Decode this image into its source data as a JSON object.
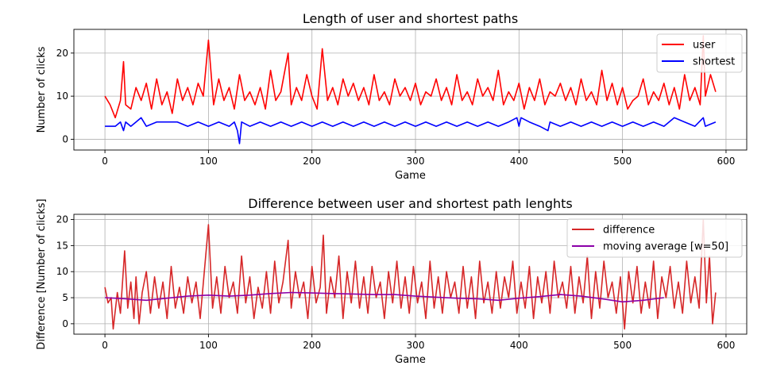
{
  "chart_data": [
    {
      "type": "line",
      "title": "Length of user and shortest paths",
      "xlabel": "Game",
      "ylabel": "Number of clicks",
      "xlim": [
        -30,
        620
      ],
      "ylim": [
        -2.5,
        25.5
      ],
      "xticks": [
        0,
        100,
        200,
        300,
        400,
        500,
        600
      ],
      "yticks": [
        0,
        10,
        20
      ],
      "grid": true,
      "legend_position": "top-right",
      "series": [
        {
          "name": "user",
          "color": "#ff0000",
          "x": [
            0,
            5,
            10,
            15,
            18,
            20,
            25,
            30,
            35,
            40,
            45,
            50,
            55,
            60,
            65,
            70,
            75,
            80,
            85,
            90,
            95,
            100,
            105,
            110,
            115,
            120,
            125,
            130,
            135,
            140,
            145,
            150,
            155,
            160,
            165,
            170,
            177,
            180,
            185,
            190,
            195,
            200,
            205,
            210,
            215,
            220,
            225,
            230,
            235,
            240,
            245,
            250,
            255,
            260,
            265,
            270,
            275,
            280,
            285,
            290,
            295,
            300,
            305,
            310,
            315,
            320,
            325,
            330,
            335,
            340,
            345,
            350,
            355,
            360,
            365,
            370,
            375,
            380,
            385,
            390,
            395,
            400,
            405,
            410,
            415,
            420,
            425,
            430,
            435,
            440,
            445,
            450,
            455,
            460,
            465,
            470,
            475,
            480,
            485,
            490,
            495,
            500,
            505,
            510,
            515,
            520,
            525,
            530,
            535,
            540,
            545,
            550,
            555,
            560,
            565,
            570,
            575,
            578,
            580,
            585,
            590
          ],
          "y": [
            10,
            8,
            5,
            9,
            18,
            8,
            7,
            12,
            9,
            13,
            7,
            14,
            8,
            11,
            6,
            14,
            9,
            12,
            8,
            13,
            10,
            23,
            8,
            14,
            9,
            12,
            7,
            15,
            9,
            11,
            8,
            12,
            7,
            16,
            9,
            11,
            20,
            8,
            12,
            9,
            15,
            10,
            7,
            21,
            9,
            12,
            8,
            14,
            10,
            13,
            9,
            12,
            8,
            15,
            9,
            11,
            8,
            14,
            10,
            12,
            9,
            13,
            8,
            11,
            10,
            14,
            9,
            12,
            8,
            15,
            9,
            11,
            8,
            14,
            10,
            12,
            9,
            16,
            8,
            11,
            9,
            13,
            7,
            12,
            9,
            14,
            8,
            11,
            10,
            13,
            9,
            12,
            8,
            14,
            9,
            11,
            8,
            16,
            9,
            13,
            8,
            12,
            7,
            9,
            10,
            14,
            8,
            11,
            9,
            13,
            8,
            12,
            7,
            15,
            9,
            12,
            8,
            24,
            10,
            15,
            11
          ]
        },
        {
          "name": "shortest",
          "color": "#0000ff",
          "x": [
            0,
            10,
            15,
            18,
            20,
            25,
            30,
            35,
            40,
            50,
            60,
            70,
            80,
            90,
            100,
            110,
            120,
            125,
            128,
            130,
            132,
            140,
            150,
            160,
            170,
            180,
            190,
            200,
            210,
            220,
            230,
            240,
            250,
            260,
            270,
            280,
            290,
            300,
            310,
            320,
            330,
            340,
            350,
            360,
            370,
            380,
            390,
            398,
            400,
            402,
            410,
            420,
            428,
            430,
            440,
            450,
            460,
            470,
            480,
            490,
            500,
            510,
            520,
            530,
            540,
            550,
            560,
            570,
            578,
            580,
            590
          ],
          "y": [
            3,
            3,
            4,
            2,
            4,
            3,
            4,
            5,
            3,
            4,
            4,
            4,
            3,
            4,
            3,
            4,
            3,
            4,
            2,
            -1,
            4,
            3,
            4,
            3,
            4,
            3,
            4,
            3,
            4,
            3,
            4,
            3,
            4,
            3,
            4,
            3,
            4,
            3,
            4,
            3,
            4,
            3,
            4,
            3,
            4,
            3,
            4,
            5,
            3,
            5,
            4,
            3,
            2,
            4,
            3,
            4,
            3,
            4,
            3,
            4,
            3,
            4,
            3,
            4,
            3,
            5,
            4,
            3,
            5,
            3,
            4
          ]
        }
      ]
    },
    {
      "type": "line",
      "title": "Difference between user and shortest path lenghts",
      "xlabel": "Game",
      "ylabel": "Difference [Number of clicks]",
      "xlim": [
        -30,
        620
      ],
      "ylim": [
        -2,
        21
      ],
      "xticks": [
        0,
        100,
        200,
        300,
        400,
        500,
        600
      ],
      "yticks": [
        0,
        5,
        10,
        15,
        20
      ],
      "grid": true,
      "legend_position": "top-right",
      "series": [
        {
          "name": "difference",
          "color": "#d62728",
          "x": [
            0,
            3,
            6,
            8,
            12,
            15,
            19,
            22,
            25,
            28,
            30,
            33,
            36,
            40,
            44,
            48,
            52,
            56,
            60,
            64,
            68,
            72,
            76,
            80,
            84,
            88,
            92,
            96,
            100,
            104,
            108,
            112,
            116,
            120,
            124,
            128,
            132,
            136,
            140,
            144,
            148,
            152,
            156,
            160,
            164,
            168,
            172,
            177,
            180,
            184,
            188,
            192,
            196,
            200,
            204,
            208,
            211,
            214,
            218,
            222,
            226,
            230,
            234,
            238,
            242,
            246,
            250,
            254,
            258,
            262,
            266,
            270,
            274,
            278,
            282,
            286,
            290,
            294,
            298,
            302,
            306,
            310,
            314,
            318,
            322,
            326,
            330,
            334,
            338,
            342,
            346,
            350,
            354,
            358,
            362,
            366,
            370,
            374,
            378,
            382,
            386,
            390,
            394,
            398,
            402,
            406,
            410,
            414,
            418,
            422,
            426,
            430,
            434,
            438,
            442,
            446,
            450,
            454,
            458,
            462,
            466,
            470,
            474,
            478,
            482,
            486,
            490,
            494,
            498,
            502,
            506,
            510,
            514,
            518,
            522,
            526,
            530,
            534,
            538,
            542,
            546,
            550,
            554,
            558,
            562,
            566,
            570,
            574,
            578,
            581,
            584,
            587,
            590
          ],
          "y": [
            7,
            4,
            5,
            -1,
            6,
            2,
            14,
            3,
            8,
            1,
            9,
            0,
            6,
            10,
            2,
            9,
            3,
            8,
            1,
            11,
            3,
            7,
            2,
            9,
            4,
            8,
            1,
            10,
            19,
            3,
            9,
            2,
            11,
            5,
            8,
            2,
            13,
            4,
            9,
            1,
            7,
            3,
            10,
            2,
            12,
            4,
            8,
            16,
            3,
            10,
            5,
            8,
            1,
            11,
            4,
            7,
            17,
            2,
            9,
            5,
            13,
            1,
            10,
            4,
            12,
            3,
            9,
            2,
            11,
            5,
            8,
            1,
            10,
            4,
            12,
            3,
            9,
            2,
            11,
            4,
            8,
            1,
            12,
            3,
            9,
            2,
            10,
            5,
            8,
            2,
            11,
            3,
            9,
            1,
            12,
            4,
            8,
            2,
            10,
            3,
            9,
            5,
            12,
            2,
            8,
            3,
            11,
            1,
            9,
            4,
            10,
            2,
            12,
            5,
            8,
            3,
            11,
            2,
            9,
            4,
            13,
            1,
            10,
            3,
            12,
            5,
            8,
            2,
            9,
            -1,
            10,
            4,
            11,
            2,
            8,
            3,
            12,
            1,
            9,
            5,
            11,
            3,
            8,
            2,
            12,
            4,
            9,
            3,
            20,
            4,
            13,
            0,
            6
          ]
        },
        {
          "name": "moving average [w=50]",
          "color": "#8b00a8",
          "x": [
            0,
            20,
            40,
            60,
            80,
            100,
            120,
            140,
            160,
            180,
            200,
            220,
            240,
            260,
            280,
            300,
            320,
            340,
            360,
            380,
            400,
            420,
            440,
            460,
            480,
            500,
            520,
            540
          ],
          "y": [
            5.0,
            4.8,
            4.5,
            4.9,
            5.3,
            5.5,
            5.3,
            5.5,
            5.8,
            6.0,
            5.9,
            5.8,
            5.7,
            5.6,
            5.6,
            5.3,
            5.1,
            4.9,
            4.8,
            4.5,
            4.9,
            5.2,
            5.6,
            5.3,
            4.8,
            4.2,
            4.5,
            5.0
          ]
        }
      ]
    }
  ]
}
